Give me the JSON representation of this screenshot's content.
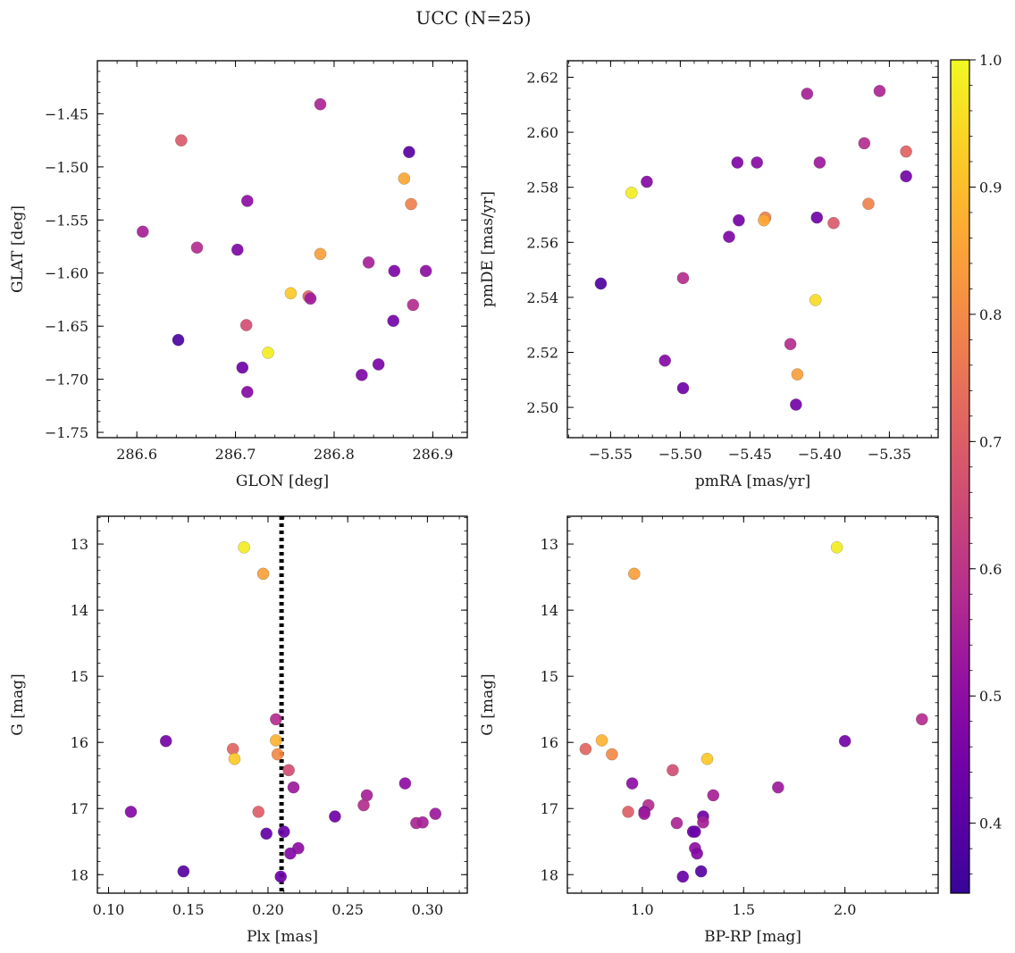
{
  "figure": {
    "title": "UCC (N=25)"
  },
  "colorbar": {
    "min": 0.345,
    "max": 1.0,
    "ticks": [
      0.4,
      0.5,
      0.6,
      0.7,
      0.8,
      0.9,
      1.0
    ],
    "tick_labels": [
      "0.4",
      "0.5",
      "0.6",
      "0.7",
      "0.8",
      "0.9",
      "1.0"
    ],
    "colormap": "plasma"
  },
  "chart_data": [
    {
      "type": "scatter",
      "id": "glon-glat",
      "xlabel": "GLON [deg]",
      "ylabel": "GLAT [deg]",
      "xlim": [
        286.56,
        286.935
      ],
      "ylim": [
        -1.755,
        -1.4
      ],
      "yinvert": false,
      "xticks": [
        286.6,
        286.7,
        286.8,
        286.9
      ],
      "xtick_labels": [
        "286.6",
        "286.7",
        "286.8",
        "286.9"
      ],
      "yticks": [
        -1.45,
        -1.5,
        -1.55,
        -1.6,
        -1.65,
        -1.7,
        -1.75
      ],
      "ytick_labels": [
        "−1.45",
        "−1.50",
        "−1.55",
        "−1.60",
        "−1.65",
        "−1.70",
        "−1.75"
      ],
      "points": [
        {
          "x": 286.786,
          "y": -1.441,
          "c": 0.56
        },
        {
          "x": 286.645,
          "y": -1.475,
          "c": 0.69
        },
        {
          "x": 286.876,
          "y": -1.486,
          "c": 0.4
        },
        {
          "x": 286.871,
          "y": -1.511,
          "c": 0.86
        },
        {
          "x": 286.712,
          "y": -1.532,
          "c": 0.5
        },
        {
          "x": 286.878,
          "y": -1.535,
          "c": 0.78
        },
        {
          "x": 286.606,
          "y": -1.561,
          "c": 0.55
        },
        {
          "x": 286.661,
          "y": -1.576,
          "c": 0.58
        },
        {
          "x": 286.702,
          "y": -1.578,
          "c": 0.47
        },
        {
          "x": 286.786,
          "y": -1.582,
          "c": 0.84
        },
        {
          "x": 286.835,
          "y": -1.59,
          "c": 0.55
        },
        {
          "x": 286.861,
          "y": -1.598,
          "c": 0.47
        },
        {
          "x": 286.893,
          "y": -1.598,
          "c": 0.5
        },
        {
          "x": 286.756,
          "y": -1.619,
          "c": 0.92
        },
        {
          "x": 286.774,
          "y": -1.622,
          "c": 0.71
        },
        {
          "x": 286.776,
          "y": -1.624,
          "c": 0.53
        },
        {
          "x": 286.88,
          "y": -1.63,
          "c": 0.58
        },
        {
          "x": 286.86,
          "y": -1.645,
          "c": 0.45
        },
        {
          "x": 286.711,
          "y": -1.649,
          "c": 0.66
        },
        {
          "x": 286.642,
          "y": -1.663,
          "c": 0.38
        },
        {
          "x": 286.733,
          "y": -1.675,
          "c": 0.98
        },
        {
          "x": 286.845,
          "y": -1.686,
          "c": 0.46
        },
        {
          "x": 286.707,
          "y": -1.689,
          "c": 0.44
        },
        {
          "x": 286.828,
          "y": -1.696,
          "c": 0.47
        },
        {
          "x": 286.712,
          "y": -1.712,
          "c": 0.48
        }
      ]
    },
    {
      "type": "scatter",
      "id": "pmra-pmde",
      "xlabel": "pmRA [mas/yr]",
      "ylabel": "pmDE [mas/yr]",
      "xlim": [
        -5.581,
        -5.315
      ],
      "ylim": [
        2.489,
        2.626
      ],
      "yinvert": false,
      "xticks": [
        -5.55,
        -5.5,
        -5.45,
        -5.4,
        -5.35
      ],
      "xtick_labels": [
        "−5.55",
        "−5.50",
        "−5.45",
        "−5.40",
        "−5.35"
      ],
      "yticks": [
        2.5,
        2.52,
        2.54,
        2.56,
        2.58,
        2.6,
        2.62
      ],
      "ytick_labels": [
        "2.50",
        "2.52",
        "2.54",
        "2.56",
        "2.58",
        "2.60",
        "2.62"
      ],
      "points": [
        {
          "x": -5.409,
          "y": 2.614,
          "c": 0.55
        },
        {
          "x": -5.357,
          "y": 2.615,
          "c": 0.56
        },
        {
          "x": -5.368,
          "y": 2.596,
          "c": 0.58
        },
        {
          "x": -5.338,
          "y": 2.593,
          "c": 0.71
        },
        {
          "x": -5.459,
          "y": 2.589,
          "c": 0.47
        },
        {
          "x": -5.445,
          "y": 2.589,
          "c": 0.49
        },
        {
          "x": -5.4,
          "y": 2.589,
          "c": 0.53
        },
        {
          "x": -5.338,
          "y": 2.584,
          "c": 0.45
        },
        {
          "x": -5.524,
          "y": 2.582,
          "c": 0.48
        },
        {
          "x": -5.535,
          "y": 2.578,
          "c": 0.98
        },
        {
          "x": -5.365,
          "y": 2.574,
          "c": 0.78
        },
        {
          "x": -5.439,
          "y": 2.569,
          "c": 0.78
        },
        {
          "x": -5.44,
          "y": 2.568,
          "c": 0.86
        },
        {
          "x": -5.458,
          "y": 2.568,
          "c": 0.45
        },
        {
          "x": -5.402,
          "y": 2.569,
          "c": 0.44
        },
        {
          "x": -5.39,
          "y": 2.567,
          "c": 0.69
        },
        {
          "x": -5.465,
          "y": 2.562,
          "c": 0.47
        },
        {
          "x": -5.498,
          "y": 2.547,
          "c": 0.58
        },
        {
          "x": -5.557,
          "y": 2.545,
          "c": 0.38
        },
        {
          "x": -5.403,
          "y": 2.539,
          "c": 0.95
        },
        {
          "x": -5.421,
          "y": 2.523,
          "c": 0.58
        },
        {
          "x": -5.511,
          "y": 2.517,
          "c": 0.48
        },
        {
          "x": -5.416,
          "y": 2.512,
          "c": 0.84
        },
        {
          "x": -5.498,
          "y": 2.507,
          "c": 0.44
        },
        {
          "x": -5.417,
          "y": 2.501,
          "c": 0.45
        }
      ]
    },
    {
      "type": "scatter",
      "id": "plx-g",
      "xlabel": "Plx [mas]",
      "ylabel": "G [mag]",
      "xlim": [
        0.093,
        0.325
      ],
      "ylim": [
        12.58,
        18.28
      ],
      "yinvert": true,
      "vline": 0.2085,
      "xticks": [
        0.1,
        0.15,
        0.2,
        0.25,
        0.3
      ],
      "xtick_labels": [
        "0.10",
        "0.15",
        "0.20",
        "0.25",
        "0.30"
      ],
      "yticks": [
        13,
        14,
        15,
        16,
        17,
        18
      ],
      "ytick_labels": [
        "13",
        "14",
        "15",
        "16",
        "17",
        "18"
      ],
      "points": [
        {
          "x": 0.185,
          "y": 13.05,
          "c": 0.98
        },
        {
          "x": 0.197,
          "y": 13.45,
          "c": 0.84
        },
        {
          "x": 0.205,
          "y": 15.65,
          "c": 0.58
        },
        {
          "x": 0.136,
          "y": 15.98,
          "c": 0.45
        },
        {
          "x": 0.205,
          "y": 15.97,
          "c": 0.88
        },
        {
          "x": 0.178,
          "y": 16.1,
          "c": 0.72
        },
        {
          "x": 0.206,
          "y": 16.18,
          "c": 0.8
        },
        {
          "x": 0.179,
          "y": 16.25,
          "c": 0.92
        },
        {
          "x": 0.213,
          "y": 16.42,
          "c": 0.66
        },
        {
          "x": 0.216,
          "y": 16.68,
          "c": 0.53
        },
        {
          "x": 0.286,
          "y": 16.62,
          "c": 0.5
        },
        {
          "x": 0.262,
          "y": 16.8,
          "c": 0.55
        },
        {
          "x": 0.26,
          "y": 16.95,
          "c": 0.58
        },
        {
          "x": 0.114,
          "y": 17.05,
          "c": 0.48
        },
        {
          "x": 0.194,
          "y": 17.05,
          "c": 0.7
        },
        {
          "x": 0.242,
          "y": 17.12,
          "c": 0.44
        },
        {
          "x": 0.305,
          "y": 17.08,
          "c": 0.53
        },
        {
          "x": 0.293,
          "y": 17.22,
          "c": 0.56
        },
        {
          "x": 0.297,
          "y": 17.21,
          "c": 0.55
        },
        {
          "x": 0.199,
          "y": 17.38,
          "c": 0.42
        },
        {
          "x": 0.21,
          "y": 17.35,
          "c": 0.43
        },
        {
          "x": 0.219,
          "y": 17.6,
          "c": 0.5
        },
        {
          "x": 0.214,
          "y": 17.68,
          "c": 0.48
        },
        {
          "x": 0.147,
          "y": 17.95,
          "c": 0.4
        },
        {
          "x": 0.208,
          "y": 18.03,
          "c": 0.43
        }
      ]
    },
    {
      "type": "scatter",
      "id": "bprp-g",
      "xlabel": "BP-RP [mag]",
      "ylabel": "G [mag]",
      "xlim": [
        0.63,
        2.46
      ],
      "ylim": [
        12.58,
        18.28
      ],
      "yinvert": true,
      "xticks": [
        1.0,
        1.5,
        2.0
      ],
      "xtick_labels": [
        "1.0",
        "1.5",
        "2.0"
      ],
      "yticks": [
        13,
        14,
        15,
        16,
        17,
        18
      ],
      "ytick_labels": [
        "13",
        "14",
        "15",
        "16",
        "17",
        "18"
      ],
      "points": [
        {
          "x": 1.96,
          "y": 13.05,
          "c": 0.98
        },
        {
          "x": 0.96,
          "y": 13.45,
          "c": 0.84
        },
        {
          "x": 2.38,
          "y": 15.65,
          "c": 0.58
        },
        {
          "x": 2.0,
          "y": 15.98,
          "c": 0.45
        },
        {
          "x": 0.8,
          "y": 15.97,
          "c": 0.88
        },
        {
          "x": 0.72,
          "y": 16.1,
          "c": 0.72
        },
        {
          "x": 0.85,
          "y": 16.18,
          "c": 0.8
        },
        {
          "x": 1.32,
          "y": 16.25,
          "c": 0.92
        },
        {
          "x": 1.15,
          "y": 16.42,
          "c": 0.66
        },
        {
          "x": 1.67,
          "y": 16.68,
          "c": 0.53
        },
        {
          "x": 0.95,
          "y": 16.62,
          "c": 0.5
        },
        {
          "x": 1.35,
          "y": 16.8,
          "c": 0.55
        },
        {
          "x": 1.03,
          "y": 16.95,
          "c": 0.58
        },
        {
          "x": 1.01,
          "y": 17.05,
          "c": 0.48
        },
        {
          "x": 0.93,
          "y": 17.05,
          "c": 0.7
        },
        {
          "x": 1.3,
          "y": 17.12,
          "c": 0.44
        },
        {
          "x": 1.01,
          "y": 17.08,
          "c": 0.53
        },
        {
          "x": 1.17,
          "y": 17.22,
          "c": 0.56
        },
        {
          "x": 1.3,
          "y": 17.21,
          "c": 0.55
        },
        {
          "x": 1.25,
          "y": 17.35,
          "c": 0.42
        },
        {
          "x": 1.26,
          "y": 17.6,
          "c": 0.5
        },
        {
          "x": 1.27,
          "y": 17.68,
          "c": 0.48
        },
        {
          "x": 1.29,
          "y": 17.95,
          "c": 0.4
        },
        {
          "x": 1.2,
          "y": 18.03,
          "c": 0.43
        },
        {
          "x": 1.26,
          "y": 17.35,
          "c": 0.43
        }
      ]
    }
  ]
}
